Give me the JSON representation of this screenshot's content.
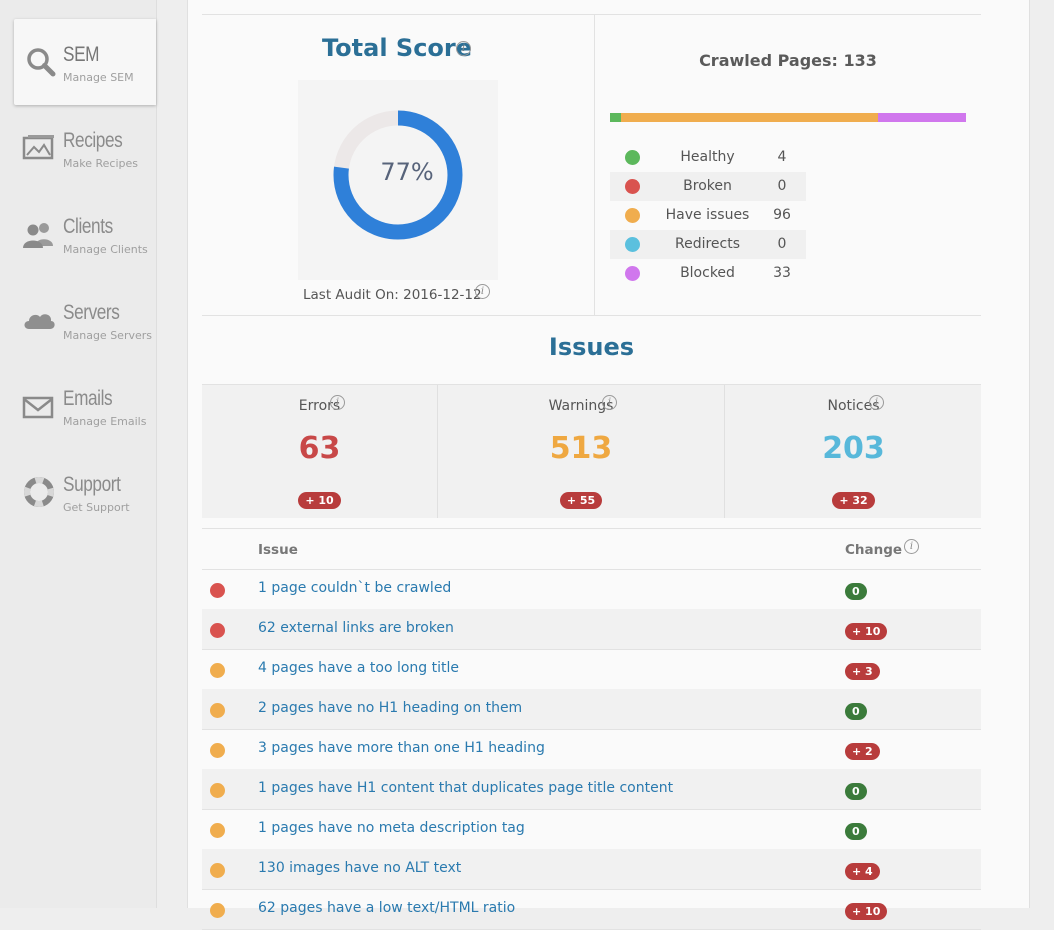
{
  "colors": {
    "title_blue": "#2b6f96",
    "donut_fill": "#2f80d9",
    "donut_track": "#ece8e8",
    "green": "#5cb85c",
    "red": "#d9534f",
    "orange": "#f0ad4e",
    "cyan": "#5bc0de",
    "purple": "#d077ed",
    "errors": "#c84848",
    "warnings": "#efa841",
    "notices": "#58b8da"
  },
  "sidebar": {
    "items": [
      {
        "title": "SEM",
        "subtitle": "Manage SEM",
        "icon": "search-icon",
        "active": true
      },
      {
        "title": "Recipes",
        "subtitle": "Make Recipes",
        "icon": "picture-icon"
      },
      {
        "title": "Clients",
        "subtitle": "Manage Clients",
        "icon": "users-icon"
      },
      {
        "title": "Servers",
        "subtitle": "Manage Servers",
        "icon": "cloud-icon"
      },
      {
        "title": "Emails",
        "subtitle": "Manage Emails",
        "icon": "envelope-icon"
      },
      {
        "title": "Support",
        "subtitle": "Get Support",
        "icon": "lifebuoy-icon"
      }
    ]
  },
  "score": {
    "title": "Total Score",
    "percent": 77,
    "percent_label": "77%",
    "last_audit": "Last Audit On: 2016-12-12"
  },
  "crawled": {
    "title": "Crawled Pages: 133",
    "total": 133,
    "breakdown": [
      {
        "label": "Healthy",
        "count": 4,
        "color": "#5cb85c"
      },
      {
        "label": "Broken",
        "count": 0,
        "color": "#d9534f"
      },
      {
        "label": "Have issues",
        "count": 96,
        "color": "#f0ad4e"
      },
      {
        "label": "Redirects",
        "count": 0,
        "color": "#5bc0de"
      },
      {
        "label": "Blocked",
        "count": 33,
        "color": "#d077ed"
      }
    ]
  },
  "issues": {
    "title": "Issues",
    "counts": [
      {
        "label": "Errors",
        "value": "63",
        "change": "+ 10",
        "color": "#c84848"
      },
      {
        "label": "Warnings",
        "value": "513",
        "change": "+ 55",
        "color": "#efa841"
      },
      {
        "label": "Notices",
        "value": "203",
        "change": "+ 32",
        "color": "#58b8da"
      }
    ],
    "table": {
      "col_issue": "Issue",
      "col_change": "Change",
      "rows": [
        {
          "severity": "error",
          "text": "1 page couldn`t be crawled",
          "change": "0"
        },
        {
          "severity": "error",
          "text": "62 external links are broken",
          "change": "+ 10"
        },
        {
          "severity": "warning",
          "text": "4 pages have a too long title",
          "change": "+ 3"
        },
        {
          "severity": "warning",
          "text": "2 pages have no H1 heading on them",
          "change": "0"
        },
        {
          "severity": "warning",
          "text": "3 pages have more than one H1 heading",
          "change": "+ 2"
        },
        {
          "severity": "warning",
          "text": "1 pages have H1 content that duplicates page title content",
          "change": "0"
        },
        {
          "severity": "warning",
          "text": "1 pages have no meta description tag",
          "change": "0"
        },
        {
          "severity": "warning",
          "text": "130 images have no ALT text",
          "change": "+ 4"
        },
        {
          "severity": "warning",
          "text": "62 pages have a low text/HTML ratio",
          "change": "+ 10"
        }
      ]
    }
  }
}
